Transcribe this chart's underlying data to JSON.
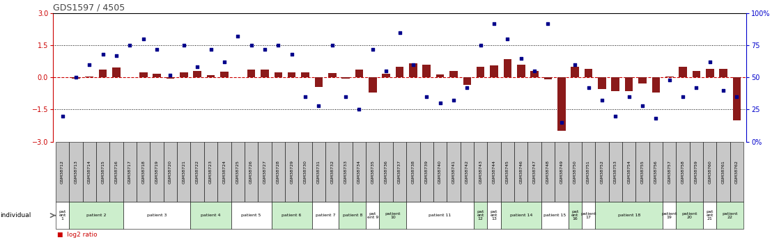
{
  "title": "GDS1597 / 4505",
  "samples": [
    "GSM38712",
    "GSM38713",
    "GSM38714",
    "GSM38715",
    "GSM38716",
    "GSM38717",
    "GSM38718",
    "GSM38719",
    "GSM38720",
    "GSM38721",
    "GSM38722",
    "GSM38723",
    "GSM38724",
    "GSM38725",
    "GSM38726",
    "GSM38727",
    "GSM38728",
    "GSM38729",
    "GSM38730",
    "GSM38731",
    "GSM38732",
    "GSM38733",
    "GSM38734",
    "GSM38735",
    "GSM38736",
    "GSM38737",
    "GSM38738",
    "GSM38739",
    "GSM38740",
    "GSM38741",
    "GSM38742",
    "GSM38743",
    "GSM38744",
    "GSM38745",
    "GSM38746",
    "GSM38747",
    "GSM38748",
    "GSM38749",
    "GSM38750",
    "GSM38751",
    "GSM38752",
    "GSM38753",
    "GSM38754",
    "GSM38755",
    "GSM38756",
    "GSM38757",
    "GSM38758",
    "GSM38759",
    "GSM38760",
    "GSM38761",
    "GSM38762"
  ],
  "log2_ratio": [
    0.0,
    -0.05,
    0.05,
    0.35,
    0.45,
    0.0,
    0.22,
    0.18,
    -0.05,
    0.25,
    0.3,
    0.1,
    0.28,
    0.0,
    0.35,
    0.35,
    0.25,
    0.25,
    0.22,
    -0.45,
    0.2,
    -0.05,
    0.35,
    -0.7,
    0.18,
    0.5,
    0.65,
    0.6,
    0.15,
    0.3,
    -0.35,
    0.5,
    0.55,
    0.85,
    0.6,
    0.3,
    -0.1,
    -2.5,
    0.5,
    0.4,
    -0.55,
    -0.65,
    -0.65,
    -0.3,
    -0.7,
    0.05,
    0.5,
    0.3,
    0.4,
    0.4,
    -2.0
  ],
  "percentile": [
    20,
    50,
    60,
    68,
    67,
    75,
    80,
    72,
    52,
    75,
    58,
    72,
    62,
    82,
    75,
    72,
    75,
    68,
    35,
    28,
    75,
    35,
    25,
    72,
    55,
    85,
    60,
    35,
    30,
    32,
    42,
    75,
    92,
    80,
    65,
    55,
    92,
    15,
    60,
    42,
    32,
    20,
    35,
    28,
    18,
    48,
    35,
    42,
    62,
    40,
    35
  ],
  "patients": [
    {
      "label": "pat\nent\n1",
      "start": 0,
      "end": 1,
      "color": "#ffffff"
    },
    {
      "label": "patient 2",
      "start": 1,
      "end": 5,
      "color": "#cceecc"
    },
    {
      "label": "patient 3",
      "start": 5,
      "end": 10,
      "color": "#ffffff"
    },
    {
      "label": "patient 4",
      "start": 10,
      "end": 13,
      "color": "#cceecc"
    },
    {
      "label": "patient 5",
      "start": 13,
      "end": 16,
      "color": "#ffffff"
    },
    {
      "label": "patient 6",
      "start": 16,
      "end": 19,
      "color": "#cceecc"
    },
    {
      "label": "patient 7",
      "start": 19,
      "end": 21,
      "color": "#ffffff"
    },
    {
      "label": "patient 8",
      "start": 21,
      "end": 23,
      "color": "#cceecc"
    },
    {
      "label": "pat\nent 9",
      "start": 23,
      "end": 24,
      "color": "#ffffff"
    },
    {
      "label": "patient\n10",
      "start": 24,
      "end": 26,
      "color": "#cceecc"
    },
    {
      "label": "patient 11",
      "start": 26,
      "end": 31,
      "color": "#ffffff"
    },
    {
      "label": "pat\nent\n12",
      "start": 31,
      "end": 32,
      "color": "#cceecc"
    },
    {
      "label": "pat\nent\n13",
      "start": 32,
      "end": 33,
      "color": "#ffffff"
    },
    {
      "label": "patient 14",
      "start": 33,
      "end": 36,
      "color": "#cceecc"
    },
    {
      "label": "patient 15",
      "start": 36,
      "end": 38,
      "color": "#ffffff"
    },
    {
      "label": "pat\nent\n16",
      "start": 38,
      "end": 39,
      "color": "#cceecc"
    },
    {
      "label": "patient\n17",
      "start": 39,
      "end": 40,
      "color": "#ffffff"
    },
    {
      "label": "patient 18",
      "start": 40,
      "end": 45,
      "color": "#cceecc"
    },
    {
      "label": "patient\n19",
      "start": 45,
      "end": 46,
      "color": "#ffffff"
    },
    {
      "label": "patient\n20",
      "start": 46,
      "end": 48,
      "color": "#cceecc"
    },
    {
      "label": "pat\nent\n21",
      "start": 48,
      "end": 49,
      "color": "#ffffff"
    },
    {
      "label": "patient\n22",
      "start": 49,
      "end": 51,
      "color": "#cceecc"
    }
  ],
  "ylim_left": [
    -3,
    3
  ],
  "yticks_left": [
    -3,
    -1.5,
    0,
    1.5,
    3
  ],
  "yticks_right": [
    0,
    25,
    50,
    75,
    100
  ],
  "ytick_labels_right": [
    "0%",
    "25",
    "50",
    "75",
    "100%"
  ],
  "hlines_dotted": [
    1.5,
    -1.5
  ],
  "bar_color": "#8b1a1a",
  "dot_color": "#00008b",
  "left_axis_color": "#cc0000",
  "right_axis_color": "#0000cc",
  "gsm_box_color": "#c8c8c8",
  "legend_bar_color": "#cc0000",
  "legend_dot_color": "#00008b"
}
